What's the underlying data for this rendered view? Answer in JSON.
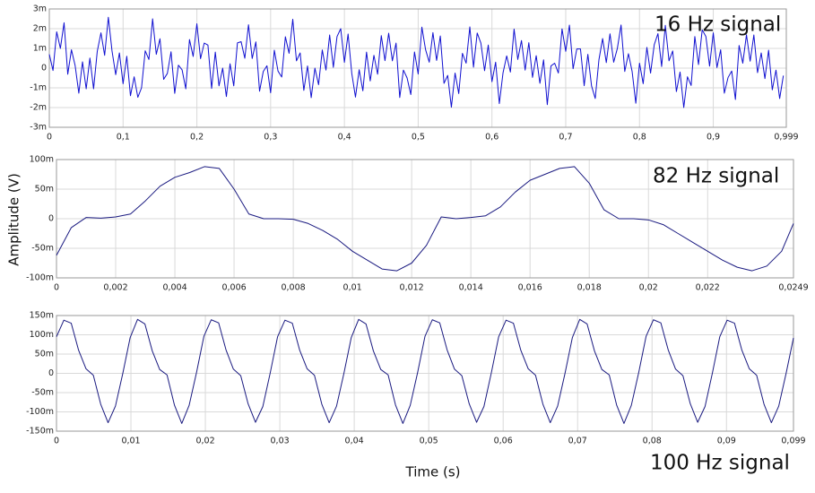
{
  "chart_data": [
    {
      "type": "line",
      "annotation": "16 Hz signal",
      "color": "#1010d0",
      "grid": true,
      "xlim": [
        0,
        0.999
      ],
      "ylim": [
        -0.003,
        0.003
      ],
      "xticks": [
        0,
        {
          "value": 0.1,
          "label": "0,1"
        },
        {
          "value": 0.2,
          "label": "0,2"
        },
        {
          "value": 0.3,
          "label": "0,3"
        },
        {
          "value": 0.4,
          "label": "0,4"
        },
        {
          "value": 0.5,
          "label": "0,5"
        },
        {
          "value": 0.6,
          "label": "0,6"
        },
        {
          "value": 0.7,
          "label": "0,7"
        },
        {
          "value": 0.8,
          "label": "0,8"
        },
        {
          "value": 0.9,
          "label": "0,9"
        },
        {
          "value": 0.999,
          "label": "0,999"
        }
      ],
      "yticks": [
        {
          "value": 0.003,
          "label": "3m"
        },
        {
          "value": 0.002,
          "label": "2m"
        },
        {
          "value": 0.001,
          "label": "1m"
        },
        0,
        {
          "value": -0.001,
          "label": "-1m"
        },
        {
          "value": -0.002,
          "label": "-2m"
        },
        {
          "value": -0.003,
          "label": "-3m"
        }
      ],
      "x": [
        0,
        0.005,
        0.01,
        0.015,
        0.02,
        0.025,
        0.03,
        0.035,
        0.04,
        0.045,
        0.05,
        0.055,
        0.06,
        0.065,
        0.07,
        0.075,
        0.08,
        0.085,
        0.09,
        0.095,
        0.1,
        0.105,
        0.11,
        0.115,
        0.12,
        0.125,
        0.13,
        0.135,
        0.14,
        0.145,
        0.15,
        0.155,
        0.16,
        0.165,
        0.17,
        0.175,
        0.18,
        0.185,
        0.19,
        0.195,
        0.2,
        0.205,
        0.21,
        0.215,
        0.22,
        0.225,
        0.23,
        0.235,
        0.24,
        0.245,
        0.25,
        0.255,
        0.26,
        0.265,
        0.27,
        0.275,
        0.28,
        0.285,
        0.29,
        0.295,
        0.3,
        0.305,
        0.31,
        0.315,
        0.32,
        0.325,
        0.33,
        0.335,
        0.34,
        0.345,
        0.35,
        0.355,
        0.36,
        0.365,
        0.37,
        0.375,
        0.38,
        0.385,
        0.39,
        0.395,
        0.4,
        0.405,
        0.41,
        0.415,
        0.42,
        0.425,
        0.43,
        0.435,
        0.44,
        0.445,
        0.45,
        0.455,
        0.46,
        0.465,
        0.47,
        0.475,
        0.48,
        0.485,
        0.49,
        0.495,
        0.5,
        0.505,
        0.51,
        0.515,
        0.52,
        0.525,
        0.53,
        0.535,
        0.54,
        0.545,
        0.55,
        0.555,
        0.56,
        0.565,
        0.57,
        0.575,
        0.58,
        0.585,
        0.59,
        0.595,
        0.6,
        0.605,
        0.61,
        0.615,
        0.62,
        0.625,
        0.63,
        0.635,
        0.64,
        0.645,
        0.65,
        0.655,
        0.66,
        0.665,
        0.67,
        0.675,
        0.68,
        0.685,
        0.69,
        0.695,
        0.7,
        0.705,
        0.71,
        0.715,
        0.72,
        0.725,
        0.73,
        0.735,
        0.74,
        0.745,
        0.75,
        0.755,
        0.76,
        0.765,
        0.77,
        0.775,
        0.78,
        0.785,
        0.79,
        0.795,
        0.8,
        0.805,
        0.81,
        0.815,
        0.82,
        0.825,
        0.83,
        0.835,
        0.84,
        0.845,
        0.85,
        0.855,
        0.86,
        0.865,
        0.87,
        0.875,
        0.88,
        0.885,
        0.89,
        0.895,
        0.9,
        0.905,
        0.91,
        0.915,
        0.92,
        0.925,
        0.93,
        0.935,
        0.94,
        0.945,
        0.95,
        0.955,
        0.96,
        0.965,
        0.97,
        0.975,
        0.98,
        0.985,
        0.99,
        0.995
      ],
      "values": [
        0.0007,
        -0.00012,
        0.00184,
        0.001,
        0.0023,
        -0.00031,
        0.00093,
        0.00013,
        -0.00127,
        0.00032,
        -0.00105,
        0.00051,
        -0.00105,
        0.00085,
        0.00179,
        0.00065,
        0.00258,
        0.00087,
        -0.00033,
        0.00077,
        -0.00079,
        0.0006,
        -0.0014,
        -0.00044,
        -0.00148,
        -0.001,
        0.00088,
        0.00044,
        0.0025,
        0.0007,
        0.00149,
        -0.00057,
        -0.00027,
        0.00083,
        -0.00128,
        0.00015,
        -9e-05,
        -0.00105,
        0.00145,
        0.00059,
        0.00225,
        0.00048,
        0.00127,
        0.00117,
        -0.00103,
        0.00081,
        -0.0009,
        0,
        -0.00144,
        0.00022,
        -0.0009,
        0.00128,
        0.00134,
        0.0005,
        0.0022,
        0.00049,
        0.00133,
        -0.00117,
        -0.00017,
        0.00012,
        -0.00125,
        0.00091,
        -0.00015,
        -0.00045,
        0.00159,
        0.00075,
        0.00248,
        0.00037,
        0.00077,
        -0.00113,
        0.00011,
        -0.0015,
        0,
        -0.00084,
        0.00092,
        -0.0001,
        0.00168,
        4e-05,
        0.0016,
        0.002,
        0.00029,
        0.00173,
        -0.00027,
        -0.00147,
        -8e-05,
        -0.00115,
        0.00081,
        -0.00065,
        0.00065,
        -0.00031,
        0.00165,
        0.00038,
        0.00177,
        0.00037,
        0.00127,
        -0.00149,
        -0.0001,
        -0.0005,
        -0.00134,
        0.00082,
        -0.0003,
        0.00208,
        0.00094,
        0.0003,
        0.0018,
        0.00039,
        0.00163,
        -0.00077,
        -0.00037,
        -0.00198,
        -0.00025,
        -0.00129,
        0.00075,
        0.00025,
        0.00209,
        5e-05,
        0.00178,
        0.00127,
        -0.00013,
        0.00117,
        -0.00069,
        0.0003,
        -0.0018,
        -0.00024,
        0.00062,
        -0.0002,
        0.00198,
        0.00044,
        0.0014,
        -0.0001,
        0.00129,
        -0.00047,
        0.00063,
        -0.00077,
        0.00042,
        -0.00185,
        0.00011,
        0.00025,
        -0.00025,
        0.00199,
        0.00085,
        0.00218,
        -3e-05,
        0.00097,
        0.00097,
        -0.00089,
        0.0007,
        -0.0009,
        -0.00154,
        0.00042,
        0.0015,
        0.00028,
        0.00174,
        0.0003,
        0.001,
        0.00219,
        -0.00017,
        0.00073,
        -0.00017,
        -0.00178,
        0.00025,
        -0.00079,
        0.00105,
        -0.00025,
        0.00119,
        0.00175,
        8e-05,
        0.00217,
        0.00037,
        0.00087,
        -0.00119,
        -0.0002,
        -0.002,
        -0.00044,
        -0.00088,
        0.0016,
        0.00018,
        0.00194,
        0.0016,
        0.0001,
        0.00179,
        3e-05,
        0.00093,
        -0.00127,
        -0.00048,
        -0.00015,
        -0.00159,
        0.00115,
        0.00025,
        0.00169,
        0.00035,
        0.00168,
        -0.00023,
        0.00077,
        -0.00053,
        0.00091,
        -0.0011,
        -0.0001,
        -0.00154,
        -0.00038
      ]
    },
    {
      "type": "line",
      "annotation": "82 Hz signal",
      "ylabel": "Amplitude (V)",
      "color": "#1a1a80",
      "grid": true,
      "xlim": [
        0,
        0.0249
      ],
      "ylim": [
        -0.1,
        0.1
      ],
      "xticks": [
        0,
        {
          "value": 0.002,
          "label": "0,002"
        },
        {
          "value": 0.004,
          "label": "0,004"
        },
        {
          "value": 0.006,
          "label": "0,006"
        },
        {
          "value": 0.008,
          "label": "0,008"
        },
        {
          "value": 0.01,
          "label": "0,01"
        },
        {
          "value": 0.012,
          "label": "0,012"
        },
        {
          "value": 0.014,
          "label": "0,014"
        },
        {
          "value": 0.016,
          "label": "0,016"
        },
        {
          "value": 0.018,
          "label": "0,018"
        },
        {
          "value": 0.02,
          "label": "0,02"
        },
        {
          "value": 0.022,
          "label": "0,022"
        },
        {
          "value": 0.0249,
          "label": "0,0249"
        }
      ],
      "yticks": [
        {
          "value": 0.1,
          "label": "100m"
        },
        {
          "value": 0.05,
          "label": "50m"
        },
        0,
        {
          "value": -0.05,
          "label": "-50m"
        },
        {
          "value": -0.1,
          "label": "-100m"
        }
      ],
      "x": [
        0,
        0.0005,
        0.001,
        0.0015,
        0.002,
        0.0025,
        0.003,
        0.0035,
        0.004,
        0.0045,
        0.005,
        0.0055,
        0.006,
        0.0065,
        0.007,
        0.0075,
        0.008,
        0.0085,
        0.009,
        0.0095,
        0.01,
        0.0105,
        0.011,
        0.0115,
        0.012,
        0.0125,
        0.013,
        0.0135,
        0.014,
        0.0145,
        0.015,
        0.0155,
        0.016,
        0.0165,
        0.017,
        0.0175,
        0.018,
        0.0185,
        0.019,
        0.0195,
        0.02,
        0.0205,
        0.021,
        0.0215,
        0.022,
        0.0225,
        0.023,
        0.0235,
        0.024,
        0.0245,
        0.0249
      ],
      "values": [
        -0.062,
        -0.015,
        0.002,
        0.001,
        0.003,
        0.008,
        0.03,
        0.055,
        0.07,
        0.078,
        0.088,
        0.085,
        0.05,
        0.008,
        0,
        0,
        -0.001,
        -0.008,
        -0.02,
        -0.035,
        -0.055,
        -0.07,
        -0.085,
        -0.088,
        -0.075,
        -0.045,
        0.003,
        0,
        0.002,
        0.005,
        0.02,
        0.045,
        0.065,
        0.075,
        0.085,
        0.088,
        0.06,
        0.015,
        0,
        0,
        -0.002,
        -0.01,
        -0.025,
        -0.04,
        -0.055,
        -0.07,
        -0.082,
        -0.088,
        -0.08,
        -0.055,
        -0.008
      ]
    },
    {
      "type": "line",
      "annotation": "100 Hz signal",
      "xlabel": "Time (s)",
      "color": "#1a1a80",
      "grid": true,
      "xlim": [
        0,
        0.099
      ],
      "ylim": [
        -0.15,
        0.15
      ],
      "xticks": [
        0,
        {
          "value": 0.01,
          "label": "0,01"
        },
        {
          "value": 0.02,
          "label": "0,02"
        },
        {
          "value": 0.03,
          "label": "0,03"
        },
        {
          "value": 0.04,
          "label": "0,04"
        },
        {
          "value": 0.05,
          "label": "0,05"
        },
        {
          "value": 0.06,
          "label": "0,06"
        },
        {
          "value": 0.07,
          "label": "0,07"
        },
        {
          "value": 0.08,
          "label": "0,08"
        },
        {
          "value": 0.09,
          "label": "0,09"
        },
        {
          "value": 0.099,
          "label": "0,099"
        }
      ],
      "yticks": [
        {
          "value": 0.15,
          "label": "150m"
        },
        {
          "value": 0.1,
          "label": "100m"
        },
        {
          "value": 0.05,
          "label": "50m"
        },
        0,
        {
          "value": -0.05,
          "label": "-50m"
        },
        {
          "value": -0.1,
          "label": "-100m"
        },
        {
          "value": -0.15,
          "label": "-150m"
        }
      ],
      "x": [
        0,
        0.00099,
        0.00198,
        0.00297,
        0.00396,
        0.00495,
        0.00594,
        0.00693,
        0.00792,
        0.00891,
        0.0099,
        0.01089,
        0.01188,
        0.01287,
        0.01386,
        0.01485,
        0.01584,
        0.01683,
        0.01782,
        0.01881,
        0.0198,
        0.02079,
        0.02178,
        0.02277,
        0.02376,
        0.02475,
        0.02574,
        0.02673,
        0.02772,
        0.02871,
        0.0297,
        0.03069,
        0.03168,
        0.03267,
        0.03366,
        0.03465,
        0.03564,
        0.03663,
        0.03762,
        0.03861,
        0.0396,
        0.04059,
        0.04158,
        0.04257,
        0.04356,
        0.04455,
        0.04554,
        0.04653,
        0.04752,
        0.04851,
        0.0495,
        0.05049,
        0.05148,
        0.05247,
        0.05346,
        0.05445,
        0.05544,
        0.05643,
        0.05742,
        0.05841,
        0.0594,
        0.06039,
        0.06138,
        0.06237,
        0.06336,
        0.06435,
        0.06534,
        0.06633,
        0.06732,
        0.06831,
        0.0693,
        0.07029,
        0.07128,
        0.07227,
        0.07326,
        0.07425,
        0.07524,
        0.07623,
        0.07722,
        0.07821,
        0.0792,
        0.08019,
        0.08118,
        0.08217,
        0.08316,
        0.08415,
        0.08514,
        0.08613,
        0.08712,
        0.08811,
        0.0891,
        0.09009,
        0.09108,
        0.09207,
        0.09306,
        0.09405,
        0.09504,
        0.09603,
        0.09702,
        0.09801,
        0.099
      ],
      "values": [
        0.095,
        0.138,
        0.13,
        0.06,
        0.012,
        -0.005,
        -0.08,
        -0.128,
        -0.085,
        0,
        0.093,
        0.14,
        0.128,
        0.058,
        0.01,
        -0.004,
        -0.082,
        -0.13,
        -0.083,
        0.002,
        0.096,
        0.139,
        0.131,
        0.061,
        0.011,
        -0.006,
        -0.079,
        -0.127,
        -0.086,
        0.001,
        0.095,
        0.138,
        0.13,
        0.06,
        0.012,
        -0.005,
        -0.08,
        -0.128,
        -0.085,
        0,
        0.093,
        0.14,
        0.128,
        0.058,
        0.01,
        -0.004,
        -0.082,
        -0.13,
        -0.083,
        0.002,
        0.096,
        0.139,
        0.131,
        0.061,
        0.011,
        -0.006,
        -0.079,
        -0.127,
        -0.086,
        0.001,
        0.095,
        0.138,
        0.13,
        0.06,
        0.012,
        -0.005,
        -0.08,
        -0.128,
        -0.085,
        0,
        0.093,
        0.14,
        0.128,
        0.058,
        0.01,
        -0.004,
        -0.082,
        -0.13,
        -0.083,
        0.002,
        0.096,
        0.139,
        0.131,
        0.061,
        0.011,
        -0.006,
        -0.079,
        -0.127,
        -0.086,
        0.001,
        0.095,
        0.138,
        0.13,
        0.06,
        0.012,
        -0.005,
        -0.08,
        -0.128,
        -0.085,
        0,
        0.092
      ]
    }
  ]
}
